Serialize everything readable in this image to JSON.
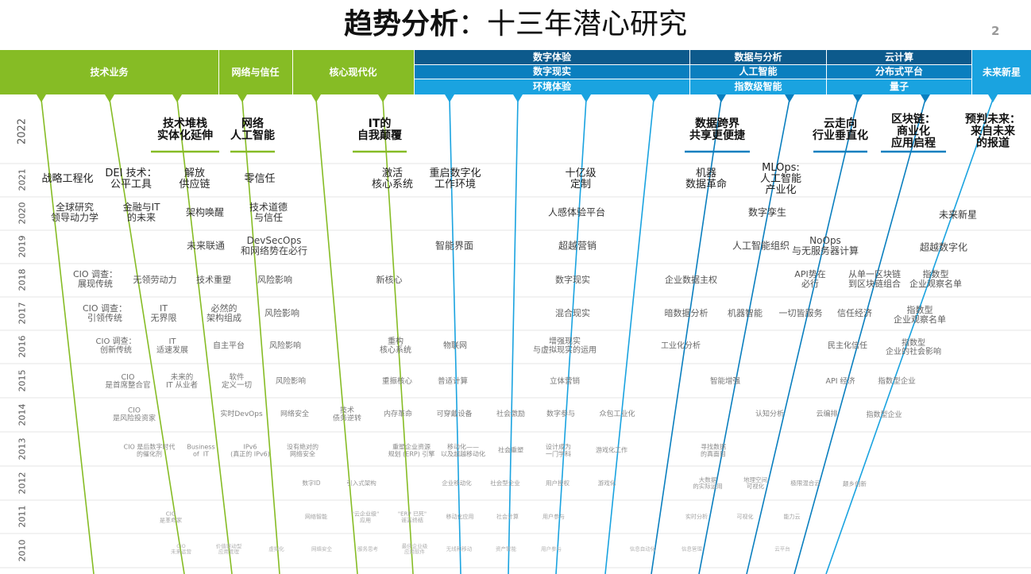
{
  "header": {
    "title_bold": "趋势分析",
    "title_rest": "：十三年潜心研究",
    "page_number": "2"
  },
  "bands": [
    {
      "id": "b1",
      "label": "技术业务",
      "color": "#86BC25"
    },
    {
      "id": "b2",
      "label": "网络与信任",
      "color": "#86BC25"
    },
    {
      "id": "b3",
      "label": "核心现代化",
      "color": "#86BC25"
    },
    {
      "id": "b4",
      "label": "数字体验",
      "color": "#0D5A8C"
    },
    {
      "id": "b5",
      "label": "数字现实",
      "color": "#0A7FBF"
    },
    {
      "id": "b6",
      "label": "环境体验",
      "color": "#1AA3E0"
    },
    {
      "id": "b7",
      "label": "数据与分析",
      "color": "#0D5A8C"
    },
    {
      "id": "b8",
      "label": "人工智能",
      "color": "#0A7FBF"
    },
    {
      "id": "b9",
      "label": "指数级智能",
      "color": "#1AA3E0"
    },
    {
      "id": "b10",
      "label": "云计算",
      "color": "#0D5A8C"
    },
    {
      "id": "b11",
      "label": "分布式平台",
      "color": "#0A7FBF"
    },
    {
      "id": "b12",
      "label": "量子",
      "color": "#1AA3E0"
    },
    {
      "id": "b13",
      "label": "未来新星",
      "color": "#1AA3E0"
    }
  ],
  "chart_data": {
    "type": "table",
    "years": [
      "2022",
      "2021",
      "2020",
      "2019",
      "2018",
      "2017",
      "2016",
      "2015",
      "2014",
      "2013",
      "2012",
      "2011",
      "2010"
    ],
    "highlights_2022": [
      {
        "text": "技术堆栈\n实体化延伸",
        "color": "#86BC25"
      },
      {
        "text": "网络\n人工智能",
        "color": "#86BC25"
      },
      {
        "text": "IT的\n自我颠覆",
        "color": "#86BC25"
      },
      {
        "text": "数据跨界\n共享更便捷",
        "color": "#0A7FBF"
      },
      {
        "text": "云走向\n行业垂直化",
        "color": "#0A7FBF"
      },
      {
        "text": "区块链：\n商业化\n应用启程",
        "color": "#0A7FBF"
      },
      {
        "text": "预判未来：\n来自未来\n的报道",
        "color": "#1AA3E0"
      }
    ],
    "trends": [
      {
        "year": "2021",
        "text": "战略工程化"
      },
      {
        "year": "2021",
        "text": "DEI 技术：\n公平工具"
      },
      {
        "year": "2021",
        "text": "解放\n供应链"
      },
      {
        "year": "2021",
        "text": "零信任"
      },
      {
        "year": "2021",
        "text": "激活\n核心系统"
      },
      {
        "year": "2021",
        "text": "重启数字化\n工作环境"
      },
      {
        "year": "2021",
        "text": "十亿级\n定制"
      },
      {
        "year": "2021",
        "text": "机器\n数据革命"
      },
      {
        "year": "2021",
        "text": "MLOps:\n人工智能\n产业化"
      },
      {
        "year": "2020",
        "text": "全球研究\n领导动力学"
      },
      {
        "year": "2020",
        "text": "金融与IT\n的未来"
      },
      {
        "year": "2020",
        "text": "架构唤醒"
      },
      {
        "year": "2020",
        "text": "技术道德\n与信任"
      },
      {
        "year": "2020",
        "text": "人感体验平台"
      },
      {
        "year": "2020",
        "text": "数字孪生"
      },
      {
        "year": "2020",
        "text": "未来新星"
      },
      {
        "year": "2019",
        "text": "未来联通"
      },
      {
        "year": "2019",
        "text": "DevSecOps\n和网络势在必行"
      },
      {
        "year": "2019",
        "text": "智能界面"
      },
      {
        "year": "2019",
        "text": "超越营销"
      },
      {
        "year": "2019",
        "text": "人工智能组织"
      },
      {
        "year": "2019",
        "text": "NoOps\n与无服务器计算"
      },
      {
        "year": "2019",
        "text": "超越数字化"
      },
      {
        "year": "2018",
        "text": "CIO 调查：\n展现传统"
      },
      {
        "year": "2018",
        "text": "无领劳动力"
      },
      {
        "year": "2018",
        "text": "技术重塑"
      },
      {
        "year": "2018",
        "text": "风险影响"
      },
      {
        "year": "2018",
        "text": "新核心"
      },
      {
        "year": "2018",
        "text": "数字现实"
      },
      {
        "year": "2018",
        "text": "企业数据主权"
      },
      {
        "year": "2018",
        "text": "API势在\n必行"
      },
      {
        "year": "2018",
        "text": "从单一区块链\n到区块链组合"
      },
      {
        "year": "2018",
        "text": "指数型\n企业观察名单"
      },
      {
        "year": "2017",
        "text": "CIO 调查：\n引领传统"
      },
      {
        "year": "2017",
        "text": "IT\n无界限"
      },
      {
        "year": "2017",
        "text": "必然的\n架构组成"
      },
      {
        "year": "2017",
        "text": "风险影响"
      },
      {
        "year": "2017",
        "text": "混合现实"
      },
      {
        "year": "2017",
        "text": "暗数据分析"
      },
      {
        "year": "2017",
        "text": "机器智能"
      },
      {
        "year": "2017",
        "text": "一切皆服务"
      },
      {
        "year": "2017",
        "text": "信任经济"
      },
      {
        "year": "2017",
        "text": "指数型\n企业观察名单"
      },
      {
        "year": "2016",
        "text": "CIO 调查：\n创新传统"
      },
      {
        "year": "2016",
        "text": "IT\n适速发展"
      },
      {
        "year": "2016",
        "text": "自主平台"
      },
      {
        "year": "2016",
        "text": "风险影响"
      },
      {
        "year": "2016",
        "text": "重构\n核心系统"
      },
      {
        "year": "2016",
        "text": "物联网"
      },
      {
        "year": "2016",
        "text": "增强现实\n与虚拟现实的运用"
      },
      {
        "year": "2016",
        "text": "工业化分析"
      },
      {
        "year": "2016",
        "text": "民主化信任"
      },
      {
        "year": "2016",
        "text": "指数型\n企业的社会影响"
      },
      {
        "year": "2015",
        "text": "CIO\n是首席整合官"
      },
      {
        "year": "2015",
        "text": "未来的\nIT 从业者"
      },
      {
        "year": "2015",
        "text": "软件\n定义一切"
      },
      {
        "year": "2015",
        "text": "风险影响"
      },
      {
        "year": "2015",
        "text": "重振核心"
      },
      {
        "year": "2015",
        "text": "普适计算"
      },
      {
        "year": "2015",
        "text": "立体营销"
      },
      {
        "year": "2015",
        "text": "智能增强"
      },
      {
        "year": "2015",
        "text": "API 经济"
      },
      {
        "year": "2015",
        "text": "指数型企业"
      },
      {
        "year": "2014",
        "text": "CIO\n是风险投资家"
      },
      {
        "year": "2014",
        "text": "实时DevOps"
      },
      {
        "year": "2014",
        "text": "网络安全"
      },
      {
        "year": "2014",
        "text": "技术\n债务逆转"
      },
      {
        "year": "2014",
        "text": "内存革命"
      },
      {
        "year": "2014",
        "text": "可穿戴设备"
      },
      {
        "year": "2014",
        "text": "社会激励"
      },
      {
        "year": "2014",
        "text": "数字参与"
      },
      {
        "year": "2014",
        "text": "众包工业化"
      },
      {
        "year": "2014",
        "text": "认知分析"
      },
      {
        "year": "2014",
        "text": "云编排"
      },
      {
        "year": "2014",
        "text": "指数型企业"
      },
      {
        "year": "2013",
        "text": "CIO 是后数字时代\n的催化剂"
      },
      {
        "year": "2013",
        "text": "Business\nof  IT"
      },
      {
        "year": "2013",
        "text": "IPv6\n(真正的 IPv6)"
      },
      {
        "year": "2013",
        "text": "没有绝对的\n网络安全"
      },
      {
        "year": "2013",
        "text": "重塑企业资源\n规划 (ERP) 引擎"
      },
      {
        "year": "2013",
        "text": "移动化——\n以及超越移动化"
      },
      {
        "year": "2013",
        "text": "社会重塑"
      },
      {
        "year": "2013",
        "text": "设计成为\n一门学科"
      },
      {
        "year": "2013",
        "text": "游戏化工作"
      },
      {
        "year": "2013",
        "text": "寻找数据\n的真面目"
      },
      {
        "year": "2012",
        "text": "数字ID"
      },
      {
        "year": "2012",
        "text": "引入式架构"
      },
      {
        "year": "2012",
        "text": "企业移动化"
      },
      {
        "year": "2012",
        "text": "社会型企业"
      },
      {
        "year": "2012",
        "text": "用户授权"
      },
      {
        "year": "2012",
        "text": "游戏化"
      },
      {
        "year": "2012",
        "text": "大数据\n的实际运用"
      },
      {
        "year": "2012",
        "text": "地理空间\n可视化"
      },
      {
        "year": "2012",
        "text": "极限混合云"
      },
      {
        "year": "2012",
        "text": "颠乡创新"
      },
      {
        "year": "2011",
        "text": "CIO\n是革命家"
      },
      {
        "year": "2011",
        "text": "网络智能"
      },
      {
        "year": "2011",
        "text": "\"云企业级\"\n应用"
      },
      {
        "year": "2011",
        "text": "\"ERP 已死\"\n谣言终结"
      },
      {
        "year": "2011",
        "text": "移动化应用"
      },
      {
        "year": "2011",
        "text": "社会计算"
      },
      {
        "year": "2011",
        "text": "用户参与"
      },
      {
        "year": "2011",
        "text": "实时分析"
      },
      {
        "year": "2011",
        "text": "可视化"
      },
      {
        "year": "2011",
        "text": "能力云"
      },
      {
        "year": "2010",
        "text": "CIO\n未来运营"
      },
      {
        "year": "2010",
        "text": "价值驱动型\n应用管理"
      },
      {
        "year": "2010",
        "text": "虚拟化"
      },
      {
        "year": "2010",
        "text": "网络安全"
      },
      {
        "year": "2010",
        "text": "服务思考"
      },
      {
        "year": "2010",
        "text": "最佳企业级\n应用软件"
      },
      {
        "year": "2010",
        "text": "无线和移动"
      },
      {
        "year": "2010",
        "text": "资产智能"
      },
      {
        "year": "2010",
        "text": "用户参与"
      },
      {
        "year": "2010",
        "text": "信息自动化"
      },
      {
        "year": "2010",
        "text": "信息管理"
      },
      {
        "year": "2010",
        "text": "云平台"
      }
    ]
  }
}
